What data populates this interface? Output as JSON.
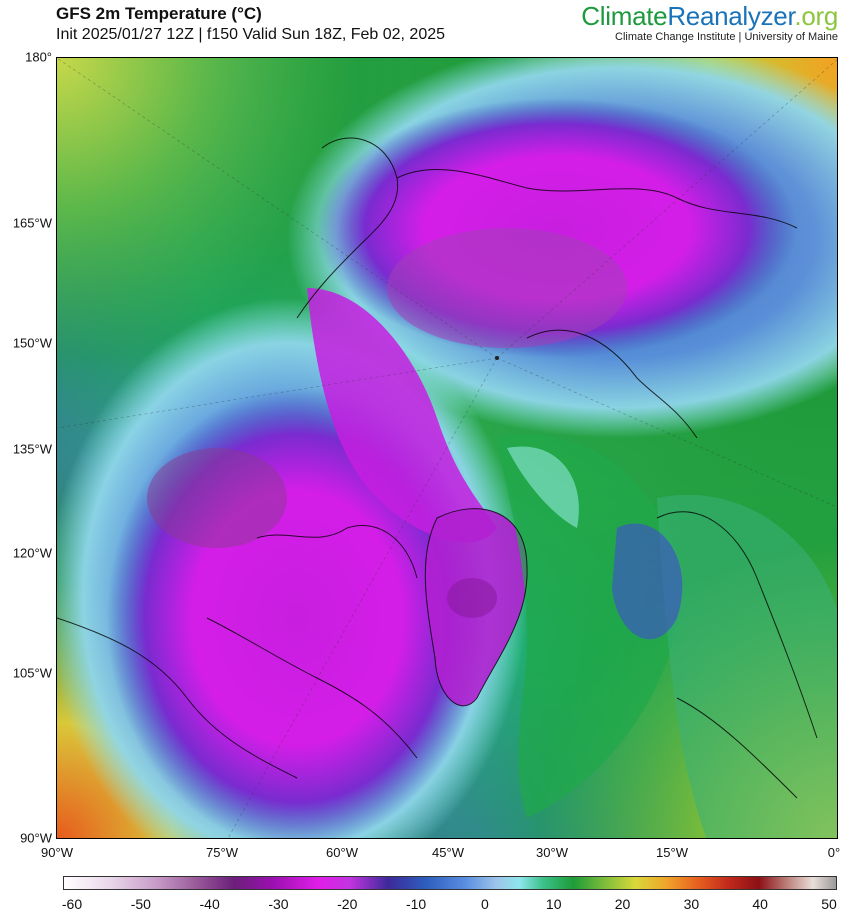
{
  "header": {
    "title": "GFS 2m Temperature (°C)",
    "subtitle": "Init 2025/01/27 12Z | f150 Valid Sun 18Z, Feb 02, 2025"
  },
  "brand": {
    "part1": "Climate",
    "part2": "Reanalyzer",
    "part3": ".org",
    "affiliation": "Climate Change Institute | University of Maine"
  },
  "map": {
    "projection": "polar stereographic (north pole)",
    "variable": "2m temperature",
    "units": "°C",
    "lat_axis_labels": [
      "180°",
      "165°W",
      "150°W",
      "135°W",
      "120°W",
      "105°W",
      "90°W"
    ],
    "lon_axis_labels": [
      "90°W",
      "75°W",
      "60°W",
      "45°W",
      "30°W",
      "15°W",
      "0°"
    ],
    "colors": {
      "very_cold": "#e11ee8",
      "cold": "#2e5fc0",
      "near_zero": "#8fe6ec",
      "mild": "#1d9c38",
      "warm": "#d9d83a",
      "hot": "#e8611f"
    }
  },
  "colorbar": {
    "ticks": [
      "-60",
      "-50",
      "-40",
      "-30",
      "-20",
      "-10",
      "0",
      "10",
      "20",
      "30",
      "40",
      "50"
    ]
  }
}
